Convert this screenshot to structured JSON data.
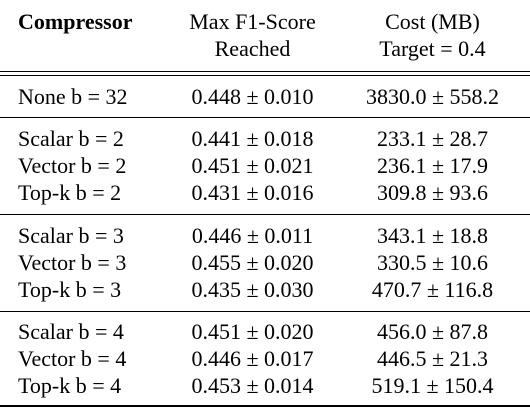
{
  "header": {
    "col1": "Compressor",
    "col2_line1": "Max F1-Score",
    "col2_line2": "Reached",
    "col3_line1": "Cost (MB)",
    "col3_line2": "Target = 0.4"
  },
  "groups": [
    {
      "rows": [
        {
          "compressor": "None b = 32",
          "f1": "0.448 ± 0.010",
          "cost": "3830.0 ± 558.2"
        }
      ]
    },
    {
      "rows": [
        {
          "compressor": "Scalar b = 2",
          "f1": "0.441 ± 0.018",
          "cost": "233.1 ± 28.7"
        },
        {
          "compressor": "Vector b = 2",
          "f1": "0.451 ± 0.021",
          "cost": "236.1 ± 17.9"
        },
        {
          "compressor": "Top-k b = 2",
          "f1": "0.431 ± 0.016",
          "cost": "309.8 ± 93.6"
        }
      ]
    },
    {
      "rows": [
        {
          "compressor": "Scalar b = 3",
          "f1": "0.446 ± 0.011",
          "cost": "343.1 ± 18.8"
        },
        {
          "compressor": "Vector b = 3",
          "f1": "0.455 ± 0.020",
          "cost": "330.5 ± 10.6"
        },
        {
          "compressor": "Top-k b = 3",
          "f1": "0.435 ± 0.030",
          "cost": "470.7 ± 116.8"
        }
      ]
    },
    {
      "rows": [
        {
          "compressor": "Scalar b = 4",
          "f1": "0.451 ± 0.020",
          "cost": "456.0 ± 87.8"
        },
        {
          "compressor": "Vector b = 4",
          "f1": "0.446 ± 0.017",
          "cost": "446.5 ± 21.3"
        },
        {
          "compressor": "Top-k b = 4",
          "f1": "0.453 ± 0.014",
          "cost": "519.1 ± 150.4"
        }
      ]
    }
  ]
}
